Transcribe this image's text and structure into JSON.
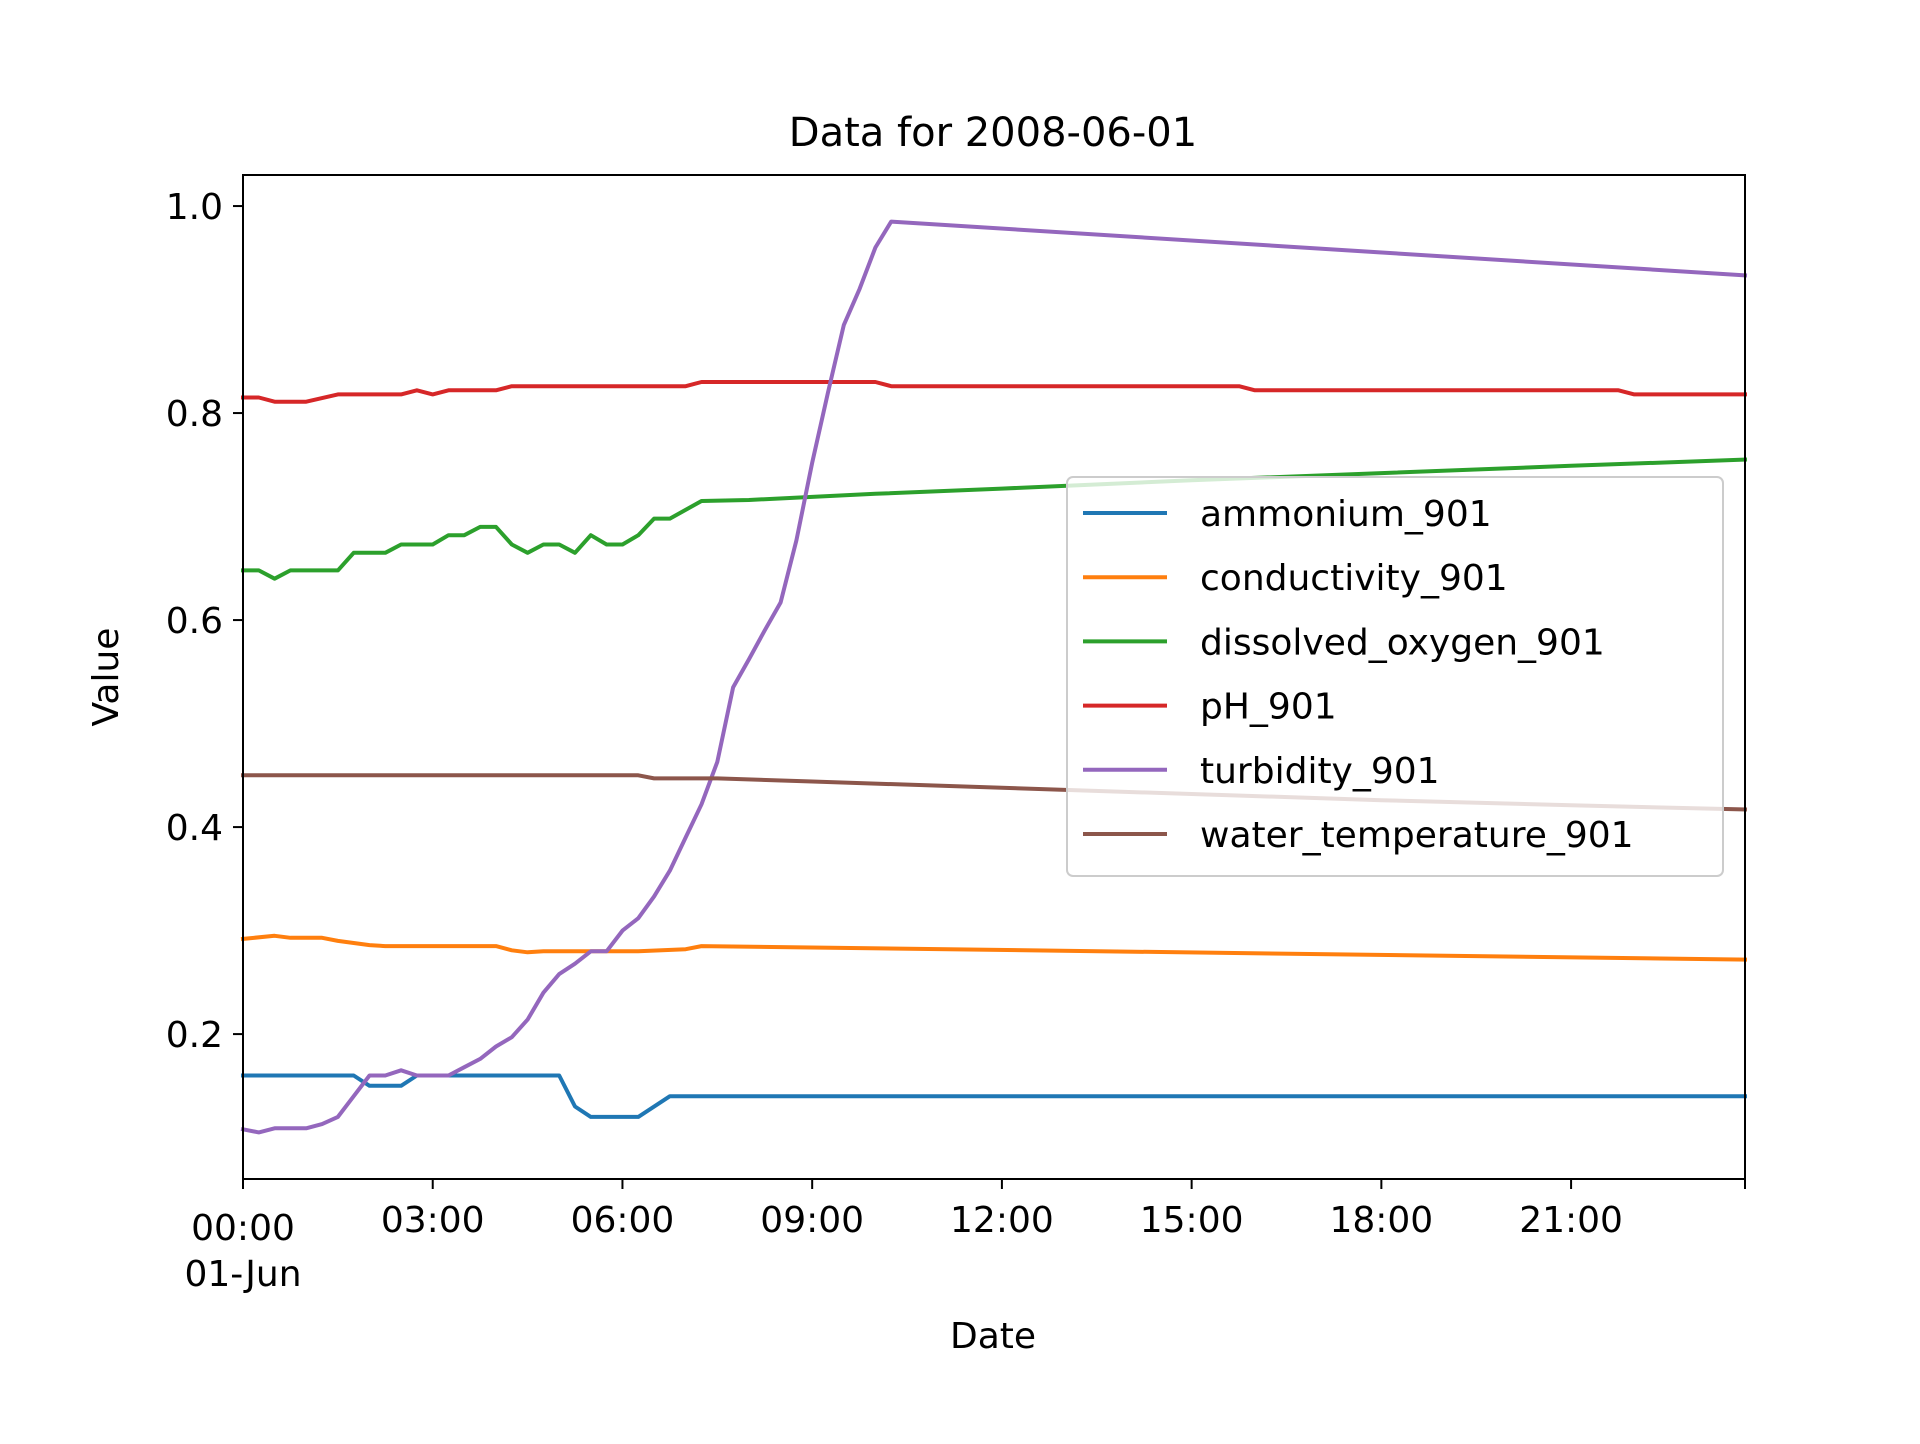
{
  "chart_data": {
    "type": "line",
    "title": "Data for 2008-06-01",
    "xlabel": "Date",
    "ylabel": "Value",
    "xlim": [
      "2008-06-01 00:00",
      "2008-06-01 23:45"
    ],
    "ylim": [
      0.06,
      1.03
    ],
    "grid": false,
    "legend_position": "center-right",
    "x_ticks": [
      {
        "at": "2008-06-01 00:00",
        "label": "00:00",
        "sublabel": "01-Jun"
      },
      {
        "at": "2008-06-01 03:00",
        "label": "03:00"
      },
      {
        "at": "2008-06-01 06:00",
        "label": "06:00"
      },
      {
        "at": "2008-06-01 09:00",
        "label": "09:00"
      },
      {
        "at": "2008-06-01 12:00",
        "label": "12:00"
      },
      {
        "at": "2008-06-01 15:00",
        "label": "15:00"
      },
      {
        "at": "2008-06-01 18:00",
        "label": "18:00"
      },
      {
        "at": "2008-06-01 21:00",
        "label": "21:00"
      }
    ],
    "y_ticks": [
      {
        "value": 0.2,
        "label": "0.2"
      },
      {
        "value": 0.4,
        "label": "0.4"
      },
      {
        "value": 0.6,
        "label": "0.6"
      },
      {
        "value": 0.8,
        "label": "0.8"
      },
      {
        "value": 1.0,
        "label": "1.0"
      }
    ],
    "series": [
      {
        "name": "ammonium_901",
        "color": "#1f77b4",
        "points": [
          [
            "2008-06-01 00:00",
            0.16
          ],
          [
            "2008-06-01 01:45",
            0.16
          ],
          [
            "2008-06-01 02:00",
            0.15
          ],
          [
            "2008-06-01 02:30",
            0.15
          ],
          [
            "2008-06-01 02:45",
            0.16
          ],
          [
            "2008-06-01 05:00",
            0.16
          ],
          [
            "2008-06-01 05:15",
            0.13
          ],
          [
            "2008-06-01 05:30",
            0.12
          ],
          [
            "2008-06-01 06:15",
            0.12
          ],
          [
            "2008-06-01 06:45",
            0.14
          ],
          [
            "2008-06-01 23:45",
            0.14
          ]
        ]
      },
      {
        "name": "conductivity_901",
        "color": "#ff7f0e",
        "points": [
          [
            "2008-06-01 00:00",
            0.292
          ],
          [
            "2008-06-01 00:30",
            0.295
          ],
          [
            "2008-06-01 00:45",
            0.293
          ],
          [
            "2008-06-01 01:15",
            0.293
          ],
          [
            "2008-06-01 01:30",
            0.29
          ],
          [
            "2008-06-01 02:00",
            0.286
          ],
          [
            "2008-06-01 02:15",
            0.285
          ],
          [
            "2008-06-01 04:00",
            0.285
          ],
          [
            "2008-06-01 04:15",
            0.281
          ],
          [
            "2008-06-01 04:30",
            0.279
          ],
          [
            "2008-06-01 04:45",
            0.28
          ],
          [
            "2008-06-01 06:15",
            0.28
          ],
          [
            "2008-06-01 07:00",
            0.282
          ],
          [
            "2008-06-01 07:15",
            0.285
          ],
          [
            "2008-06-01 23:45",
            0.272
          ]
        ]
      },
      {
        "name": "dissolved_oxygen_901",
        "color": "#2ca02c",
        "points": [
          [
            "2008-06-01 00:00",
            0.648
          ],
          [
            "2008-06-01 00:15",
            0.648
          ],
          [
            "2008-06-01 00:30",
            0.64
          ],
          [
            "2008-06-01 00:45",
            0.648
          ],
          [
            "2008-06-01 01:30",
            0.648
          ],
          [
            "2008-06-01 01:45",
            0.665
          ],
          [
            "2008-06-01 02:15",
            0.665
          ],
          [
            "2008-06-01 02:30",
            0.673
          ],
          [
            "2008-06-01 03:00",
            0.673
          ],
          [
            "2008-06-01 03:15",
            0.682
          ],
          [
            "2008-06-01 03:30",
            0.682
          ],
          [
            "2008-06-01 03:45",
            0.69
          ],
          [
            "2008-06-01 04:00",
            0.69
          ],
          [
            "2008-06-01 04:15",
            0.673
          ],
          [
            "2008-06-01 04:30",
            0.665
          ],
          [
            "2008-06-01 04:45",
            0.673
          ],
          [
            "2008-06-01 05:00",
            0.673
          ],
          [
            "2008-06-01 05:15",
            0.665
          ],
          [
            "2008-06-01 05:30",
            0.682
          ],
          [
            "2008-06-01 05:45",
            0.673
          ],
          [
            "2008-06-01 06:00",
            0.673
          ],
          [
            "2008-06-01 06:15",
            0.682
          ],
          [
            "2008-06-01 06:30",
            0.698
          ],
          [
            "2008-06-01 06:45",
            0.698
          ],
          [
            "2008-06-01 07:15",
            0.715
          ],
          [
            "2008-06-01 08:00",
            0.716
          ],
          [
            "2008-06-01 09:00",
            0.719
          ],
          [
            "2008-06-01 10:00",
            0.722
          ],
          [
            "2008-06-01 12:00",
            0.727
          ],
          [
            "2008-06-01 15:00",
            0.735
          ],
          [
            "2008-06-01 18:00",
            0.742
          ],
          [
            "2008-06-01 21:00",
            0.749
          ],
          [
            "2008-06-01 23:45",
            0.755
          ]
        ]
      },
      {
        "name": "pH_901",
        "color": "#d62728",
        "points": [
          [
            "2008-06-01 00:00",
            0.815
          ],
          [
            "2008-06-01 00:15",
            0.815
          ],
          [
            "2008-06-01 00:30",
            0.811
          ],
          [
            "2008-06-01 01:00",
            0.811
          ],
          [
            "2008-06-01 01:30",
            0.818
          ],
          [
            "2008-06-01 02:30",
            0.818
          ],
          [
            "2008-06-01 02:45",
            0.822
          ],
          [
            "2008-06-01 03:00",
            0.818
          ],
          [
            "2008-06-01 03:15",
            0.822
          ],
          [
            "2008-06-01 04:00",
            0.822
          ],
          [
            "2008-06-01 04:15",
            0.826
          ],
          [
            "2008-06-01 07:00",
            0.826
          ],
          [
            "2008-06-01 07:15",
            0.83
          ],
          [
            "2008-06-01 10:00",
            0.83
          ],
          [
            "2008-06-01 10:15",
            0.826
          ],
          [
            "2008-06-01 15:45",
            0.826
          ],
          [
            "2008-06-01 16:00",
            0.822
          ],
          [
            "2008-06-01 21:45",
            0.822
          ],
          [
            "2008-06-01 22:00",
            0.818
          ],
          [
            "2008-06-01 23:45",
            0.818
          ]
        ]
      },
      {
        "name": "turbidity_901",
        "color": "#9467bd",
        "points": [
          [
            "2008-06-01 00:00",
            0.108
          ],
          [
            "2008-06-01 00:15",
            0.105
          ],
          [
            "2008-06-01 00:30",
            0.109
          ],
          [
            "2008-06-01 01:00",
            0.109
          ],
          [
            "2008-06-01 01:15",
            0.113
          ],
          [
            "2008-06-01 01:30",
            0.12
          ],
          [
            "2008-06-01 01:45",
            0.14
          ],
          [
            "2008-06-01 02:00",
            0.16
          ],
          [
            "2008-06-01 02:15",
            0.16
          ],
          [
            "2008-06-01 02:30",
            0.165
          ],
          [
            "2008-06-01 02:45",
            0.16
          ],
          [
            "2008-06-01 03:15",
            0.16
          ],
          [
            "2008-06-01 03:30",
            0.168
          ],
          [
            "2008-06-01 03:45",
            0.176
          ],
          [
            "2008-06-01 04:00",
            0.188
          ],
          [
            "2008-06-01 04:15",
            0.197
          ],
          [
            "2008-06-01 04:30",
            0.214
          ],
          [
            "2008-06-01 04:45",
            0.24
          ],
          [
            "2008-06-01 05:00",
            0.258
          ],
          [
            "2008-06-01 05:15",
            0.268
          ],
          [
            "2008-06-01 05:30",
            0.28
          ],
          [
            "2008-06-01 05:45",
            0.28
          ],
          [
            "2008-06-01 06:00",
            0.3
          ],
          [
            "2008-06-01 06:15",
            0.312
          ],
          [
            "2008-06-01 06:30",
            0.333
          ],
          [
            "2008-06-01 06:45",
            0.358
          ],
          [
            "2008-06-01 07:00",
            0.39
          ],
          [
            "2008-06-01 07:15",
            0.422
          ],
          [
            "2008-06-01 07:30",
            0.463
          ],
          [
            "2008-06-01 07:45",
            0.535
          ],
          [
            "2008-06-01 08:00",
            0.562
          ],
          [
            "2008-06-01 08:15",
            0.59
          ],
          [
            "2008-06-01 08:30",
            0.617
          ],
          [
            "2008-06-01 08:45",
            0.677
          ],
          [
            "2008-06-01 09:00",
            0.752
          ],
          [
            "2008-06-01 09:15",
            0.82
          ],
          [
            "2008-06-01 09:30",
            0.885
          ],
          [
            "2008-06-01 09:45",
            0.92
          ],
          [
            "2008-06-01 10:00",
            0.96
          ],
          [
            "2008-06-01 10:15",
            0.985
          ],
          [
            "2008-06-01 23:45",
            0.933
          ]
        ]
      },
      {
        "name": "water_temperature_901",
        "color": "#8c564b",
        "points": [
          [
            "2008-06-01 00:00",
            0.45
          ],
          [
            "2008-06-01 06:15",
            0.45
          ],
          [
            "2008-06-01 06:30",
            0.447
          ],
          [
            "2008-06-01 07:30",
            0.447
          ],
          [
            "2008-06-01 09:00",
            0.444
          ],
          [
            "2008-06-01 12:00",
            0.438
          ],
          [
            "2008-06-01 15:00",
            0.432
          ],
          [
            "2008-06-01 18:00",
            0.426
          ],
          [
            "2008-06-01 21:00",
            0.421
          ],
          [
            "2008-06-01 23:45",
            0.417
          ]
        ]
      }
    ]
  }
}
